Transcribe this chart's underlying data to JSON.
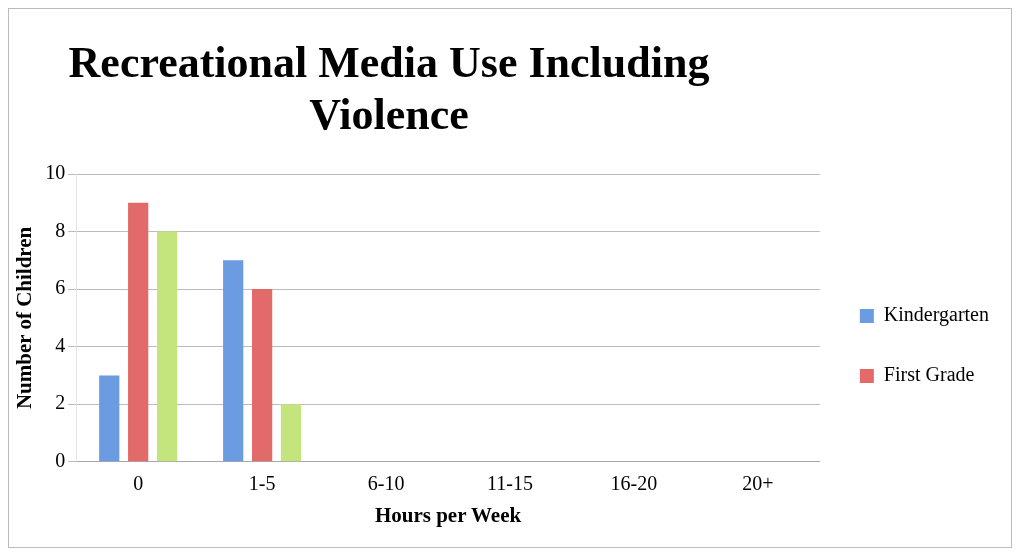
{
  "chart_data": {
    "type": "bar",
    "title": "Recreational Media Use Including Violence",
    "xlabel": "Hours per Week",
    "ylabel": "Number of Children",
    "categories": [
      "0",
      "1-5",
      "6-10",
      "11-15",
      "16-20",
      "20+"
    ],
    "series": [
      {
        "name": "Kindergarten",
        "color": "#6b9be0",
        "values": [
          3,
          7,
          0,
          0,
          0,
          0
        ]
      },
      {
        "name": "First Grade",
        "color": "#e36a6a",
        "values": [
          9,
          6,
          0,
          0,
          0,
          0
        ]
      },
      {
        "color": "#c4e47e",
        "values": [
          8,
          2,
          0,
          0,
          0,
          0
        ]
      }
    ],
    "ylim": [
      0,
      10
    ],
    "yticks": [
      0,
      2,
      4,
      6,
      8,
      10
    ],
    "grid": "y",
    "legend": "right"
  }
}
